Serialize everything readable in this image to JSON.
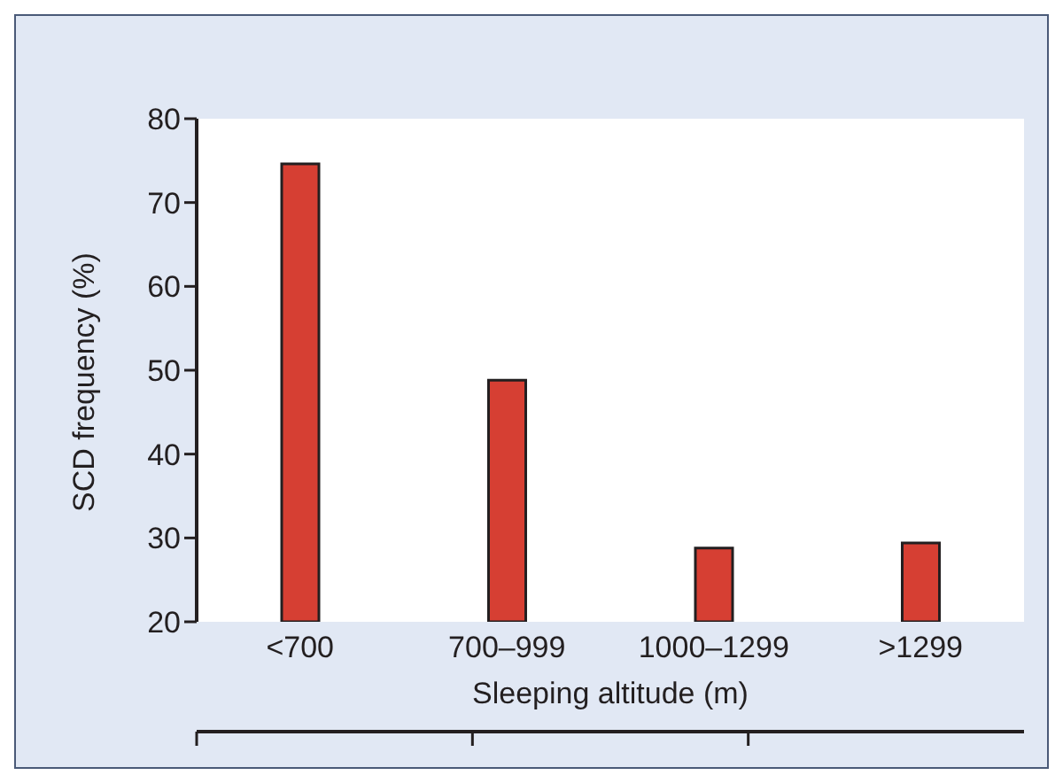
{
  "chart_data": {
    "type": "bar",
    "xlabel": "Sleeping altitude (m)",
    "ylabel": "SCD frequency (%)",
    "categories": [
      "<700",
      "700–999",
      "1000–1299",
      ">1299"
    ],
    "values": [
      74.6,
      48.8,
      28.8,
      29.4
    ],
    "color": "#d63f33",
    "ylim": [
      20,
      80
    ],
    "yticks": [
      20,
      30,
      40,
      50,
      60,
      70,
      80
    ],
    "grid": false,
    "legend": false
  }
}
